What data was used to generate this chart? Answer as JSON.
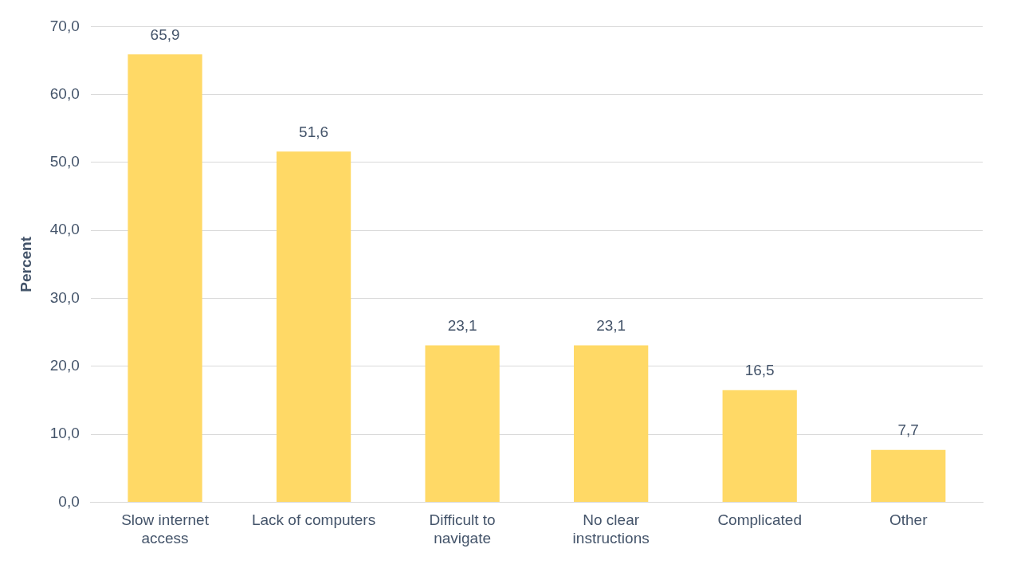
{
  "chart_data": {
    "type": "bar",
    "ylabel": "Percent",
    "categories": [
      "Slow internet access",
      "Lack of computers",
      "Difficult to navigate",
      "No clear instructions",
      "Complicated",
      "Other"
    ],
    "values": [
      65.9,
      51.6,
      23.1,
      23.1,
      16.5,
      7.7
    ],
    "value_labels": [
      "65,9",
      "51,6",
      "23,1",
      "23,1",
      "16,5",
      "7,7"
    ],
    "color": "#ffd966",
    "ylim": [
      0,
      70
    ],
    "yticks": [
      {
        "value": 0,
        "label": "0,0"
      },
      {
        "value": 10,
        "label": "10,0"
      },
      {
        "value": 20,
        "label": "20,0"
      },
      {
        "value": 30,
        "label": "30,0"
      },
      {
        "value": 40,
        "label": "40,0"
      },
      {
        "value": 50,
        "label": "50,0"
      },
      {
        "value": 60,
        "label": "60,0"
      },
      {
        "value": 70,
        "label": "70,0"
      }
    ],
    "grid": "y",
    "legend": false
  }
}
